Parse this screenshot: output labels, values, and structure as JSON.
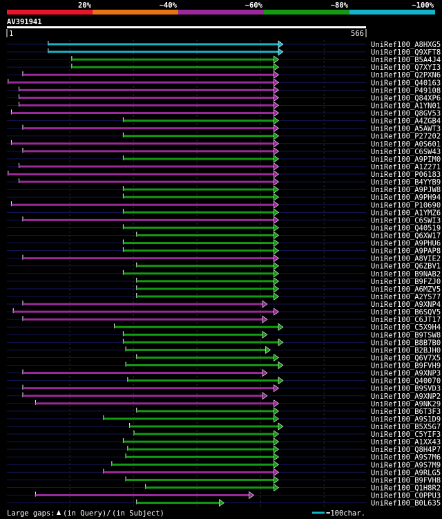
{
  "chart_data": {
    "type": "alignment-overview",
    "query_id": "AV391941",
    "query_start": "1",
    "query_end": "566",
    "query_length": 566,
    "scale_min": 1,
    "scale_max": 566,
    "identity_bands": [
      {
        "label": "20%",
        "color": "#e8142c"
      },
      {
        "label": "~40%",
        "color": "#e87314"
      },
      {
        "label": "~60%",
        "color": "#9a2a9a"
      },
      {
        "label": "~80%",
        "color": "#149a14"
      },
      {
        "label": "~100%",
        "color": "#14b4c8"
      }
    ],
    "gridlines": [
      100,
      200,
      300,
      400,
      500
    ],
    "hits": [
      {
        "name": "UniRef100_A8HXG5",
        "start": 66,
        "end": 428,
        "color": "#14b4c8"
      },
      {
        "name": "UniRef100_Q9XFT8",
        "start": 66,
        "end": 428,
        "color": "#14b4c8"
      },
      {
        "name": "UniRef100_B5A4J4",
        "start": 103,
        "end": 421,
        "color": "#149a14"
      },
      {
        "name": "UniRef100_Q7XYI3",
        "start": 103,
        "end": 421,
        "color": "#149a14"
      },
      {
        "name": "UniRef100_Q2PXN6",
        "start": 26,
        "end": 421,
        "color": "#9a2a9a"
      },
      {
        "name": "UniRef100_Q40163",
        "start": 3,
        "end": 421,
        "color": "#9a2a9a"
      },
      {
        "name": "UniRef100_P49108",
        "start": 20,
        "end": 421,
        "color": "#9a2a9a"
      },
      {
        "name": "UniRef100_Q84XP6",
        "start": 20,
        "end": 421,
        "color": "#9a2a9a"
      },
      {
        "name": "UniRef100_A1YN01",
        "start": 20,
        "end": 421,
        "color": "#9a2a9a"
      },
      {
        "name": "UniRef100_Q8GV53",
        "start": 8,
        "end": 421,
        "color": "#9a2a9a"
      },
      {
        "name": "UniRef100_A4ZGB4",
        "start": 184,
        "end": 421,
        "color": "#149a14"
      },
      {
        "name": "UniRef100_A5AWT3",
        "start": 26,
        "end": 421,
        "color": "#9a2a9a"
      },
      {
        "name": "UniRef100_P27202",
        "start": 184,
        "end": 421,
        "color": "#149a14"
      },
      {
        "name": "UniRef100_A0S601",
        "start": 8,
        "end": 421,
        "color": "#9a2a9a"
      },
      {
        "name": "UniRef100_C6SW43",
        "start": 26,
        "end": 421,
        "color": "#9a2a9a"
      },
      {
        "name": "UniRef100_A9PIM0",
        "start": 184,
        "end": 421,
        "color": "#149a14"
      },
      {
        "name": "UniRef100_A1Z271",
        "start": 20,
        "end": 421,
        "color": "#9a2a9a"
      },
      {
        "name": "UniRef100_P06183",
        "start": 3,
        "end": 421,
        "color": "#9a2a9a"
      },
      {
        "name": "UniRef100_B4YYB9",
        "start": 20,
        "end": 421,
        "color": "#9a2a9a"
      },
      {
        "name": "UniRef100_A9PJW8",
        "start": 184,
        "end": 421,
        "color": "#149a14"
      },
      {
        "name": "UniRef100_A9PH94",
        "start": 184,
        "end": 421,
        "color": "#149a14"
      },
      {
        "name": "UniRef100_P10690",
        "start": 8,
        "end": 421,
        "color": "#9a2a9a"
      },
      {
        "name": "UniRef100_A1YMZ6",
        "start": 184,
        "end": 421,
        "color": "#149a14"
      },
      {
        "name": "UniRef100_C6SWI3",
        "start": 26,
        "end": 421,
        "color": "#9a2a9a"
      },
      {
        "name": "UniRef100_Q40519",
        "start": 184,
        "end": 421,
        "color": "#149a14"
      },
      {
        "name": "UniRef100_Q6XW17",
        "start": 205,
        "end": 421,
        "color": "#149a14"
      },
      {
        "name": "UniRef100_A9PHU6",
        "start": 184,
        "end": 421,
        "color": "#149a14"
      },
      {
        "name": "UniRef100_A9PAP8",
        "start": 184,
        "end": 421,
        "color": "#149a14"
      },
      {
        "name": "UniRef100_A8VIE2",
        "start": 26,
        "end": 421,
        "color": "#9a2a9a"
      },
      {
        "name": "UniRef100_Q6ZBV1",
        "start": 205,
        "end": 421,
        "color": "#149a14"
      },
      {
        "name": "UniRef100_B9NAB2",
        "start": 184,
        "end": 421,
        "color": "#149a14"
      },
      {
        "name": "UniRef100_B9FZJ0",
        "start": 205,
        "end": 421,
        "color": "#149a14"
      },
      {
        "name": "UniRef100_A6MZV5",
        "start": 205,
        "end": 421,
        "color": "#149a14"
      },
      {
        "name": "UniRef100_A2YS77",
        "start": 205,
        "end": 421,
        "color": "#149a14"
      },
      {
        "name": "UniRef100_A9XNP4",
        "start": 26,
        "end": 403,
        "color": "#9a2a9a"
      },
      {
        "name": "UniRef100_B6SQV5",
        "start": 11,
        "end": 421,
        "color": "#9a2a9a"
      },
      {
        "name": "UniRef100_C6JT17",
        "start": 26,
        "end": 403,
        "color": "#9a2a9a"
      },
      {
        "name": "UniRef100_C5X9H4",
        "start": 170,
        "end": 428,
        "color": "#149a14"
      },
      {
        "name": "UniRef100_B9TSW8",
        "start": 184,
        "end": 403,
        "color": "#149a14"
      },
      {
        "name": "UniRef100_B8B7B0",
        "start": 184,
        "end": 428,
        "color": "#149a14"
      },
      {
        "name": "UniRef100_B2BJH0",
        "start": 188,
        "end": 408,
        "color": "#149a14"
      },
      {
        "name": "UniRef100_Q6V7X5",
        "start": 205,
        "end": 421,
        "color": "#149a14"
      },
      {
        "name": "UniRef100_B9FVH9",
        "start": 188,
        "end": 428,
        "color": "#149a14"
      },
      {
        "name": "UniRef100_A9XNP3",
        "start": 26,
        "end": 403,
        "color": "#9a2a9a"
      },
      {
        "name": "UniRef100_Q40070",
        "start": 191,
        "end": 428,
        "color": "#149a14"
      },
      {
        "name": "UniRef100_B9SVD3",
        "start": 26,
        "end": 421,
        "color": "#9a2a9a"
      },
      {
        "name": "UniRef100_A9XNP2",
        "start": 26,
        "end": 403,
        "color": "#9a2a9a"
      },
      {
        "name": "UniRef100_A9NK29",
        "start": 46,
        "end": 421,
        "color": "#9a2a9a"
      },
      {
        "name": "UniRef100_B6T3F3",
        "start": 205,
        "end": 421,
        "color": "#149a14"
      },
      {
        "name": "UniRef100_A9S1D9",
        "start": 153,
        "end": 421,
        "color": "#149a14"
      },
      {
        "name": "UniRef100_B5X5G7",
        "start": 194,
        "end": 428,
        "color": "#149a14"
      },
      {
        "name": "UniRef100_C5YIF3",
        "start": 201,
        "end": 421,
        "color": "#149a14"
      },
      {
        "name": "UniRef100_A1XX43",
        "start": 184,
        "end": 421,
        "color": "#149a14"
      },
      {
        "name": "UniRef100_Q8H4P7",
        "start": 191,
        "end": 421,
        "color": "#149a14"
      },
      {
        "name": "UniRef100_A9S7M6",
        "start": 188,
        "end": 421,
        "color": "#149a14"
      },
      {
        "name": "UniRef100_A9S7M9",
        "start": 166,
        "end": 421,
        "color": "#149a14"
      },
      {
        "name": "UniRef100_A9RLG5",
        "start": 153,
        "end": 421,
        "color": "#9a2a9a"
      },
      {
        "name": "UniRef100_B9FVH8",
        "start": 188,
        "end": 421,
        "color": "#149a14"
      },
      {
        "name": "UniRef100_Q1H8R2",
        "start": 219,
        "end": 421,
        "color": "#149a14"
      },
      {
        "name": "UniRef100_C0PPU3",
        "start": 46,
        "end": 382,
        "color": "#9a2a9a"
      },
      {
        "name": "UniRef100_B0L635",
        "start": 205,
        "end": 335,
        "color": "#149a14"
      }
    ]
  },
  "legend": {
    "gaps_label": "Large gaps:",
    "query_gap_text": "(in Query)/",
    "subject_gap_text": "(in Subject)",
    "scale_text": "=100char."
  }
}
